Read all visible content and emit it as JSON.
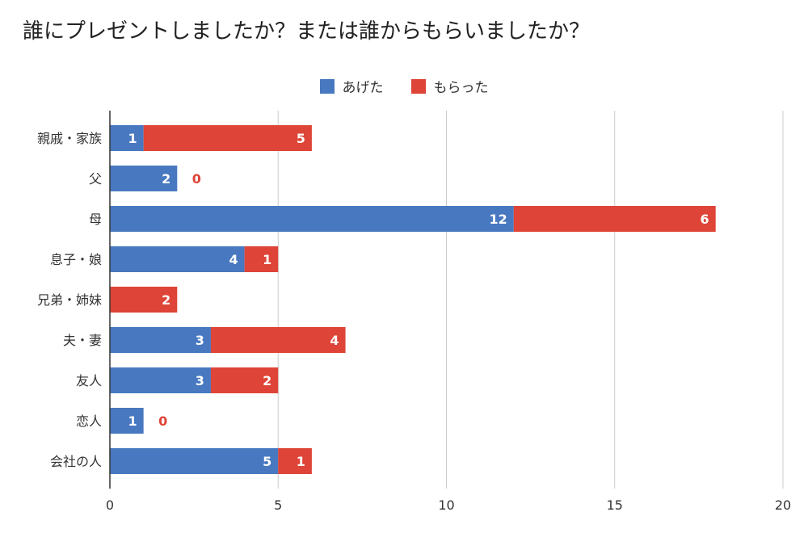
{
  "title": "誰にプレゼントしましたか？または誰からもらいましたか？",
  "colors": {
    "given": "#4878c0",
    "received": "#de4437",
    "grid": "#cccccc",
    "axis": "#333333"
  },
  "chart_data": {
    "type": "bar",
    "orientation": "horizontal",
    "stacked": true,
    "title": "誰にプレゼントしましたか？または誰からもらいましたか？",
    "categories": [
      "親戚・家族",
      "父",
      "母",
      "息子・娘",
      "兄弟・姉妹",
      "夫・妻",
      "友人",
      "恋人",
      "会社の人"
    ],
    "series": [
      {
        "name": "あげた",
        "values": [
          1,
          2,
          12,
          4,
          0,
          3,
          3,
          1,
          5
        ]
      },
      {
        "name": "もらった",
        "values": [
          5,
          0,
          6,
          1,
          2,
          4,
          2,
          0,
          1
        ]
      }
    ],
    "xlim": [
      0,
      20
    ],
    "xticks": [
      "0",
      "5",
      "10",
      "15",
      "20"
    ],
    "grid": true,
    "legend_position": "top",
    "data_labels": true
  }
}
